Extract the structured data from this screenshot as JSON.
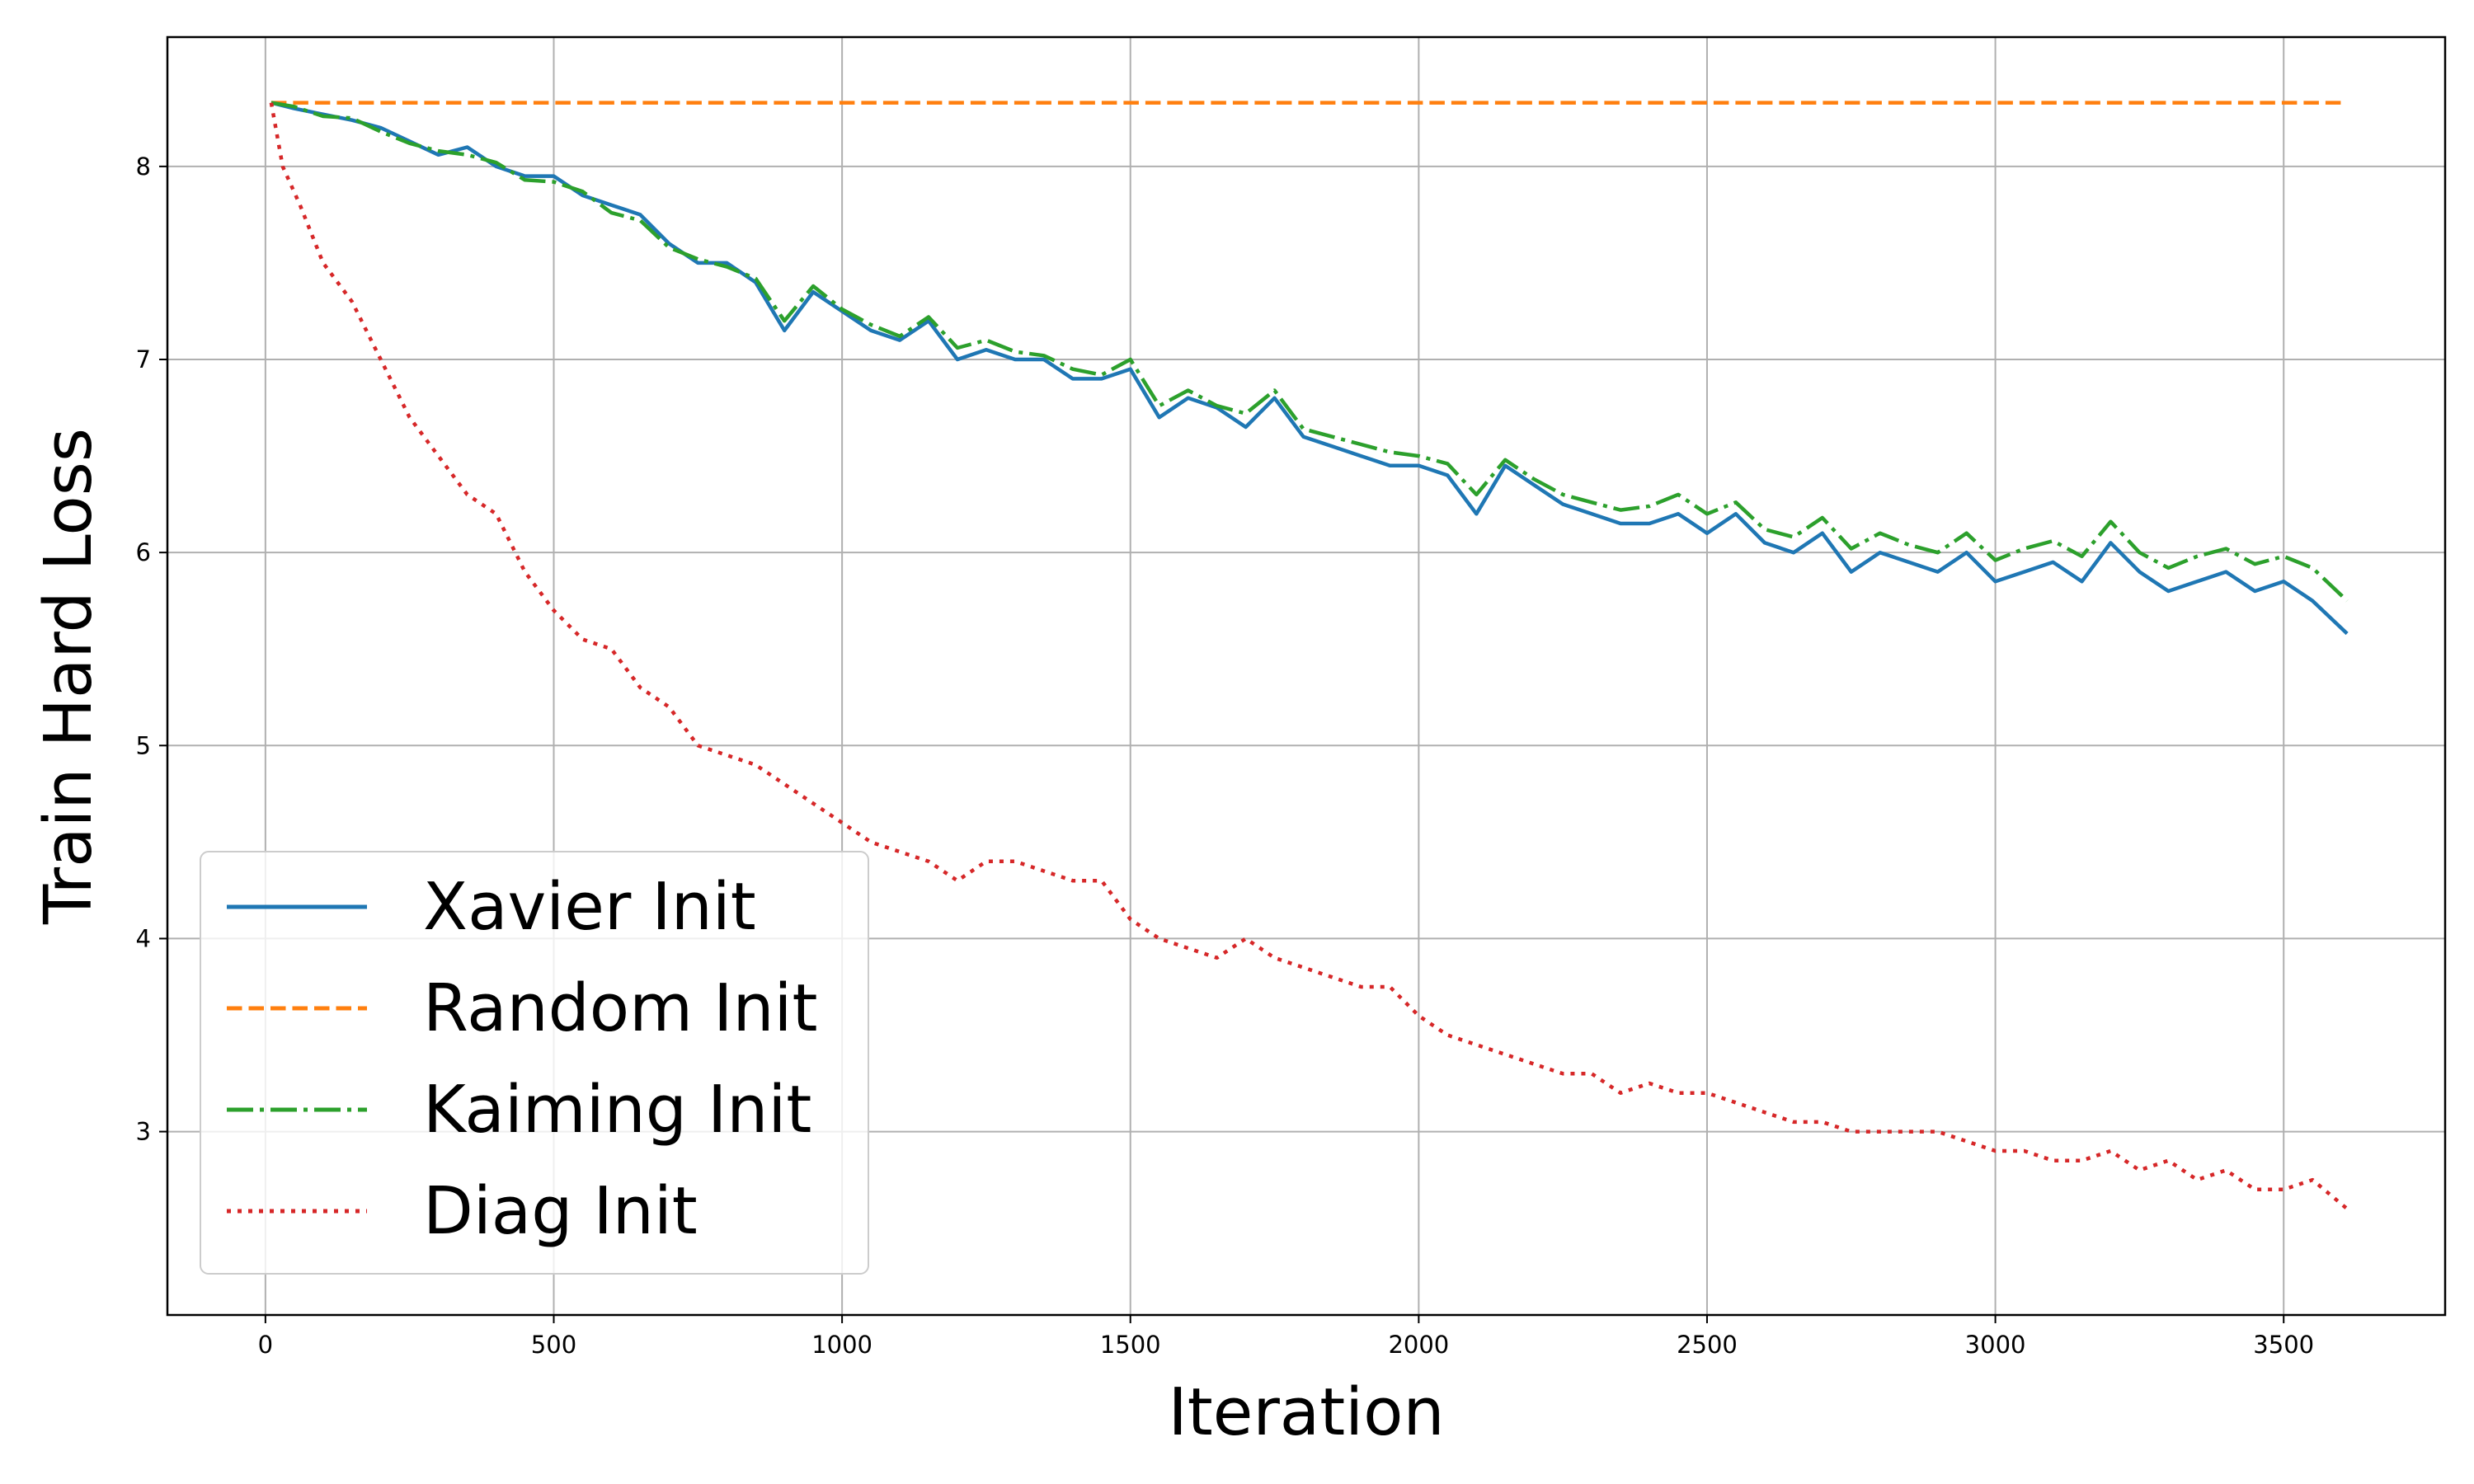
{
  "chart_data": {
    "type": "line",
    "title": "",
    "xlabel": "Iteration",
    "ylabel": "Train Hard Loss",
    "xlim": [
      -170,
      3780
    ],
    "ylim": [
      2.05,
      8.67
    ],
    "xticks": [
      0,
      500,
      1000,
      1500,
      2000,
      2500,
      3000,
      3500
    ],
    "yticks": [
      3,
      4,
      5,
      6,
      7,
      8
    ],
    "grid": true,
    "legend_position": "lower-left",
    "series": [
      {
        "name": "Xavier Init",
        "color": "#1f77b4",
        "style": "solid",
        "x": [
          10,
          50,
          100,
          150,
          200,
          250,
          300,
          350,
          400,
          450,
          500,
          550,
          600,
          650,
          700,
          750,
          800,
          850,
          900,
          950,
          1000,
          1050,
          1100,
          1150,
          1200,
          1250,
          1300,
          1350,
          1400,
          1450,
          1500,
          1550,
          1600,
          1650,
          1700,
          1750,
          1800,
          1850,
          1900,
          1950,
          2000,
          2050,
          2100,
          2150,
          2200,
          2250,
          2300,
          2350,
          2400,
          2450,
          2500,
          2550,
          2600,
          2650,
          2700,
          2750,
          2800,
          2850,
          2900,
          2950,
          3000,
          3050,
          3100,
          3150,
          3200,
          3250,
          3300,
          3350,
          3400,
          3450,
          3500,
          3550,
          3610
        ],
        "y": [
          8.33,
          8.3,
          8.27,
          8.24,
          8.2,
          8.13,
          8.06,
          8.1,
          8.0,
          7.95,
          7.95,
          7.85,
          7.8,
          7.75,
          7.6,
          7.5,
          7.5,
          7.4,
          7.15,
          7.35,
          7.25,
          7.15,
          7.1,
          7.2,
          7.0,
          7.05,
          7.0,
          7.0,
          6.9,
          6.9,
          6.95,
          6.7,
          6.8,
          6.75,
          6.65,
          6.8,
          6.6,
          6.55,
          6.5,
          6.45,
          6.45,
          6.4,
          6.2,
          6.45,
          6.35,
          6.25,
          6.2,
          6.15,
          6.15,
          6.2,
          6.1,
          6.2,
          6.05,
          6.0,
          6.1,
          5.9,
          6.0,
          5.95,
          5.9,
          6.0,
          5.85,
          5.9,
          5.95,
          5.85,
          6.05,
          5.9,
          5.8,
          5.85,
          5.9,
          5.8,
          5.85,
          5.75,
          5.58
        ]
      },
      {
        "name": "Random Init",
        "color": "#ff7f0e",
        "style": "dashed",
        "x": [
          10,
          3610
        ],
        "y": [
          8.33,
          8.33
        ]
      },
      {
        "name": "Kaiming Init",
        "color": "#2ca02c",
        "style": "dashdot",
        "x": [
          10,
          50,
          100,
          150,
          200,
          250,
          300,
          350,
          400,
          450,
          500,
          550,
          600,
          650,
          700,
          750,
          800,
          850,
          900,
          950,
          1000,
          1050,
          1100,
          1150,
          1200,
          1250,
          1300,
          1350,
          1400,
          1450,
          1500,
          1550,
          1600,
          1650,
          1700,
          1750,
          1800,
          1850,
          1900,
          1950,
          2000,
          2050,
          2100,
          2150,
          2200,
          2250,
          2300,
          2350,
          2400,
          2450,
          2500,
          2550,
          2600,
          2650,
          2700,
          2750,
          2800,
          2850,
          2900,
          2950,
          3000,
          3050,
          3100,
          3150,
          3200,
          3250,
          3300,
          3350,
          3400,
          3450,
          3500,
          3550,
          3610
        ],
        "y": [
          8.33,
          8.31,
          8.26,
          8.25,
          8.18,
          8.12,
          8.08,
          8.06,
          8.02,
          7.93,
          7.92,
          7.87,
          7.76,
          7.72,
          7.58,
          7.52,
          7.48,
          7.42,
          7.2,
          7.38,
          7.26,
          7.18,
          7.12,
          7.22,
          7.06,
          7.1,
          7.04,
          7.02,
          6.95,
          6.92,
          7.0,
          6.76,
          6.84,
          6.76,
          6.72,
          6.84,
          6.64,
          6.6,
          6.56,
          6.52,
          6.5,
          6.46,
          6.3,
          6.48,
          6.38,
          6.3,
          6.26,
          6.22,
          6.24,
          6.3,
          6.2,
          6.26,
          6.12,
          6.08,
          6.18,
          6.02,
          6.1,
          6.04,
          6.0,
          6.1,
          5.96,
          6.02,
          6.06,
          5.98,
          6.16,
          6.0,
          5.92,
          5.98,
          6.02,
          5.94,
          5.98,
          5.92,
          5.75
        ]
      },
      {
        "name": "Diag Init",
        "color": "#d62728",
        "style": "dotted",
        "x": [
          10,
          30,
          60,
          100,
          150,
          200,
          250,
          300,
          350,
          400,
          450,
          500,
          550,
          600,
          650,
          700,
          750,
          800,
          850,
          900,
          950,
          1000,
          1050,
          1100,
          1150,
          1200,
          1250,
          1300,
          1350,
          1400,
          1450,
          1500,
          1550,
          1600,
          1650,
          1700,
          1750,
          1800,
          1850,
          1900,
          1950,
          2000,
          2050,
          2100,
          2150,
          2200,
          2250,
          2300,
          2350,
          2400,
          2450,
          2500,
          2550,
          2600,
          2650,
          2700,
          2750,
          2800,
          2850,
          2900,
          2950,
          3000,
          3050,
          3100,
          3150,
          3200,
          3250,
          3300,
          3350,
          3400,
          3450,
          3500,
          3550,
          3610
        ],
        "y": [
          8.33,
          8.0,
          7.8,
          7.5,
          7.3,
          7.0,
          6.7,
          6.5,
          6.3,
          6.2,
          5.9,
          5.7,
          5.55,
          5.5,
          5.3,
          5.2,
          5.0,
          4.95,
          4.9,
          4.8,
          4.7,
          4.6,
          4.5,
          4.45,
          4.4,
          4.3,
          4.4,
          4.4,
          4.35,
          4.3,
          4.3,
          4.1,
          4.0,
          3.95,
          3.9,
          4.0,
          3.9,
          3.85,
          3.8,
          3.75,
          3.75,
          3.6,
          3.5,
          3.45,
          3.4,
          3.35,
          3.3,
          3.3,
          3.2,
          3.25,
          3.2,
          3.2,
          3.15,
          3.1,
          3.05,
          3.05,
          3.0,
          3.0,
          3.0,
          3.0,
          2.95,
          2.9,
          2.9,
          2.85,
          2.85,
          2.9,
          2.8,
          2.85,
          2.75,
          2.8,
          2.7,
          2.7,
          2.75,
          2.6
        ]
      }
    ]
  }
}
